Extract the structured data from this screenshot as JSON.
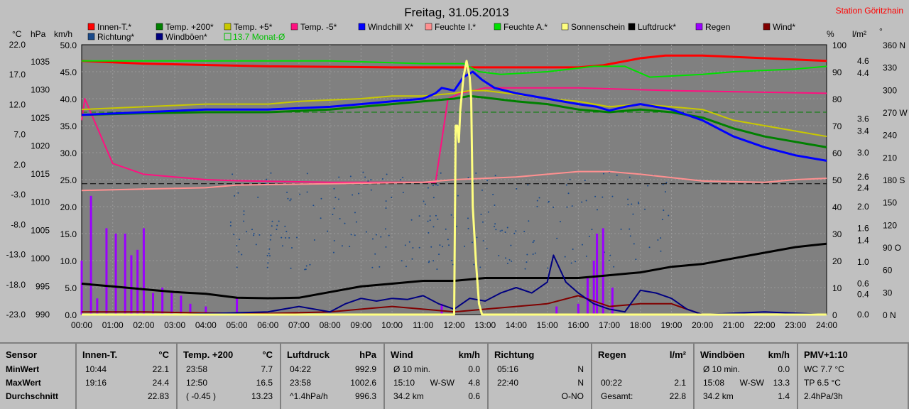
{
  "chart_data": {
    "type": "line",
    "title": "Freitag, 31.05.2013",
    "station": "Station Göritzhain",
    "x_ticks": [
      "00:00",
      "01:00",
      "02:00",
      "03:00",
      "04:00",
      "05:00",
      "06:00",
      "07:00",
      "08:00",
      "09:00",
      "10:00",
      "11:00",
      "12:00",
      "13:00",
      "14:00",
      "15:00",
      "16:00",
      "17:00",
      "18:00",
      "19:00",
      "20:00",
      "21:00",
      "22:00",
      "23:00",
      "24:00"
    ],
    "xlim": [
      0,
      24
    ],
    "axes": {
      "temp": {
        "unit": "°C",
        "ticks": [
          "22.0",
          "17.0",
          "12.0",
          "7.0",
          "2.0",
          "-3.0",
          "-8.0",
          "-13.0",
          "-18.0",
          "-23.0"
        ],
        "range": [
          -23,
          22
        ]
      },
      "pressure": {
        "unit": "hPa",
        "ticks": [
          "1035",
          "1030",
          "1025",
          "1020",
          "1015",
          "1010",
          "1005",
          "1000",
          "995",
          "990"
        ],
        "range": [
          990,
          1038
        ]
      },
      "wind": {
        "unit": "km/h",
        "ticks": [
          "50.0",
          "45.0",
          "40.0",
          "35.0",
          "30.0",
          "25.0",
          "20.0",
          "15.0",
          "10.0",
          "5.0",
          "0.0"
        ],
        "range": [
          0,
          50
        ]
      },
      "humidity": {
        "unit": "%",
        "ticks": [
          "100",
          "90",
          "80",
          "70",
          "60",
          "50",
          "40",
          "30",
          "20",
          "10",
          "0"
        ],
        "range": [
          0,
          100
        ]
      },
      "rain": {
        "unit": "l/m²",
        "ticks": [
          "4.6",
          "4.4",
          "3.6",
          "3.4",
          "3.0",
          "2.6",
          "2.4",
          "2.0",
          "1.6",
          "1.4",
          "1.0",
          "0.6",
          "0.4",
          "0.0"
        ]
      },
      "direction": {
        "unit": "°",
        "ticks": [
          "360 N",
          "330",
          "300",
          "270 W",
          "240",
          "210",
          "180 S",
          "150",
          "120",
          "90 O",
          "60",
          "30",
          "0 N"
        ],
        "range": [
          0,
          360
        ]
      }
    },
    "legend": [
      {
        "name": "Innen-T.*",
        "color": "#ff0000"
      },
      {
        "name": "Temp. +200*",
        "color": "#008000"
      },
      {
        "name": "Temp. +5*",
        "color": "#c8c800"
      },
      {
        "name": "Temp. -5*",
        "color": "#ff1080"
      },
      {
        "name": "Windchill X*",
        "color": "#0000ff"
      },
      {
        "name": "Feuchte I.*",
        "color": "#ff9090"
      },
      {
        "name": "Feuchte A.*",
        "color": "#00e000"
      },
      {
        "name": "Sonnenschein",
        "color": "#ffff80"
      },
      {
        "name": "Luftdruck*",
        "color": "#000000"
      },
      {
        "name": "Regen",
        "color": "#9b00ff"
      },
      {
        "name": "Wind*",
        "color": "#800000"
      },
      {
        "name": "Richtung*",
        "color": "#1a4a8a"
      },
      {
        "name": "Windböen*",
        "color": "#000080"
      },
      {
        "name": "13.7 Monat-Ø",
        "color": "#00c000"
      }
    ],
    "series": [
      {
        "name": "Innen-T.*",
        "axis": "wind",
        "x": [
          0,
          2,
          6,
          10,
          12,
          14,
          16,
          16.8,
          18,
          18.8,
          20,
          22,
          24
        ],
        "values": [
          47,
          46.5,
          46,
          45.8,
          45.8,
          45.8,
          45.8,
          46.2,
          47.5,
          48,
          48,
          47.5,
          47
        ]
      },
      {
        "name": "Feuchte A.*",
        "axis": "humidity",
        "x": [
          0,
          4,
          8,
          11,
          12.3,
          12.8,
          13.5,
          15,
          16.5,
          17.5,
          18.3,
          20,
          21,
          23,
          24
        ],
        "values": [
          94,
          94,
          94,
          93,
          93,
          90,
          89,
          90,
          92,
          92,
          88,
          89,
          90,
          91,
          92
        ]
      },
      {
        "name": "Temp. -5*",
        "axis": "wind",
        "x": [
          0,
          0.1,
          1,
          2,
          3,
          4,
          5,
          8,
          11,
          11.4,
          11.8,
          12.2,
          13,
          16,
          19,
          24
        ],
        "values": [
          36,
          40,
          28,
          26,
          25.5,
          25,
          24.8,
          24.5,
          24.5,
          24.5,
          40,
          41,
          42,
          42,
          41.5,
          41
        ]
      },
      {
        "name": "Temp. +5*",
        "axis": "wind",
        "x": [
          0,
          2,
          4,
          6,
          7,
          9,
          10,
          11,
          12,
          12.5,
          13,
          14,
          15,
          16,
          17,
          18,
          19,
          20,
          21,
          22,
          23,
          24
        ],
        "values": [
          38,
          38.5,
          39,
          39,
          39.5,
          40,
          40.5,
          40.5,
          41,
          41.5,
          41.5,
          40.8,
          40,
          39.5,
          38.5,
          39,
          38.5,
          38,
          36,
          35,
          34,
          33
        ]
      },
      {
        "name": "Temp. +200*",
        "axis": "wind",
        "x": [
          0,
          2,
          4,
          6,
          8,
          9,
          10,
          11,
          12,
          12.5,
          13,
          14,
          15,
          16,
          17,
          18,
          19,
          20,
          21,
          22,
          23,
          24
        ],
        "values": [
          37,
          37.3,
          37.5,
          37.5,
          38,
          38.5,
          39,
          39.5,
          40,
          40.5,
          40.2,
          39.5,
          39,
          38,
          37.5,
          38,
          37.5,
          36.5,
          34.5,
          33,
          32,
          31
        ]
      },
      {
        "name": "Windchill X*",
        "axis": "wind",
        "x": [
          0,
          2,
          4,
          6,
          8,
          9,
          10,
          11,
          11.4,
          11.6,
          12,
          12.3,
          12.6,
          12.9,
          13.3,
          14,
          15,
          16,
          16.6,
          17,
          17.5,
          18,
          18.5,
          19,
          20,
          21,
          22,
          23,
          24
        ],
        "values": [
          37,
          37.5,
          38,
          38,
          38.5,
          39,
          39.5,
          40,
          41,
          42,
          41.5,
          44,
          45,
          43.5,
          42,
          41,
          40,
          39,
          38.5,
          37.8,
          38.5,
          39,
          38.5,
          38,
          36,
          33,
          31,
          29.5,
          28.5
        ]
      },
      {
        "name": "Feuchte I.*",
        "axis": "humidity",
        "x": [
          0,
          2,
          4,
          5,
          8,
          11,
          12,
          13,
          14,
          15,
          16,
          17,
          18,
          20,
          22,
          23,
          24
        ],
        "values": [
          46,
          46.5,
          47,
          48,
          48.5,
          49,
          50,
          50.5,
          51,
          52,
          53,
          53,
          52,
          49.5,
          49,
          50,
          50.5
        ]
      },
      {
        "name": "Luftdruck*",
        "axis": "pressure",
        "x": [
          0,
          1,
          2,
          3,
          4,
          5,
          6,
          7,
          8,
          9,
          10,
          11,
          12,
          13,
          14,
          15,
          16,
          17,
          18,
          19,
          20,
          21,
          22,
          23,
          24
        ],
        "values": [
          995.5,
          995,
          994.5,
          994,
          993.7,
          993,
          992.9,
          993,
          994,
          995,
          995.5,
          996,
          996,
          996.5,
          996.5,
          996.5,
          996.5,
          997,
          997.5,
          998.5,
          999,
          1000,
          1001,
          1002,
          1002.6
        ]
      },
      {
        "name": "Wind*",
        "axis": "wind",
        "x": [
          0,
          2,
          4,
          6,
          8,
          9,
          10,
          11,
          12,
          13,
          14,
          15,
          16,
          17,
          18,
          19,
          20,
          24
        ],
        "values": [
          0.5,
          0.5,
          0.3,
          0.2,
          0.5,
          1,
          1.5,
          1,
          0.5,
          1,
          1.5,
          2,
          3.5,
          1.5,
          2,
          2,
          0,
          0
        ]
      },
      {
        "name": "Windböen*",
        "axis": "wind",
        "x": [
          0,
          3,
          6,
          7,
          8,
          8.5,
          9,
          9.5,
          10,
          10.5,
          11,
          11.5,
          12,
          12.5,
          13,
          13.5,
          14,
          14.5,
          15,
          15.2,
          15.6,
          16,
          16.5,
          17,
          17.5,
          18,
          18.5,
          19,
          19.5,
          20,
          22,
          24
        ],
        "values": [
          0,
          0,
          0.5,
          1.5,
          0.5,
          2,
          3,
          2.5,
          3,
          2.8,
          3.5,
          2,
          1,
          3,
          2.5,
          4,
          5,
          4,
          6,
          11,
          6,
          4,
          2,
          1,
          0.5,
          4.5,
          4,
          3,
          1,
          0,
          0.5,
          0
        ]
      },
      {
        "name": "Sonnenschein",
        "axis": "wind",
        "x": [
          0,
          11.9,
          12,
          12.05,
          12.1,
          12.15,
          12.2,
          12.3,
          12.4,
          12.5,
          12.55,
          12.6,
          12.7,
          12.8,
          12.9,
          13,
          24
        ],
        "values": [
          0,
          0,
          0,
          35,
          35,
          32,
          38,
          44,
          47,
          44,
          40,
          20,
          10,
          2,
          0,
          0,
          0
        ]
      }
    ],
    "rain_bars": {
      "axis": "wind",
      "x": [
        0,
        0.3,
        0.5,
        0.8,
        1.1,
        1.4,
        1.6,
        1.8,
        2,
        2.3,
        2.6,
        2.9,
        3.2,
        3.5,
        4,
        5,
        11.6,
        15.3,
        16,
        16.3,
        16.5,
        16.6,
        16.8,
        17.1
      ],
      "values": [
        10,
        22,
        3,
        16,
        15,
        15,
        11,
        12,
        16,
        4,
        5,
        4,
        3.5,
        2,
        1.5,
        3,
        2,
        1.5,
        2,
        7,
        10,
        15,
        16,
        5
      ]
    },
    "reference_lines": [
      {
        "axis": "humidity",
        "value": 75,
        "color": "#008000",
        "label": "13.7 Monat-Ø"
      },
      {
        "axis": "humidity",
        "value": 48.5,
        "color": "#000000"
      }
    ]
  },
  "panel": {
    "cols": [
      {
        "header": "Sensor",
        "unit": "",
        "rows": [
          [
            "MinWert",
            "",
            ""
          ],
          [
            "MaxWert",
            "",
            ""
          ],
          [
            "Durchschnitt",
            "",
            ""
          ]
        ]
      },
      {
        "header": "Innen-T.",
        "unit": "°C",
        "rows": [
          [
            "10:44",
            "",
            "22.1"
          ],
          [
            "19:16",
            "",
            "24.4"
          ],
          [
            "",
            "",
            "22.83"
          ]
        ]
      },
      {
        "header": "Temp. +200",
        "unit": "°C",
        "rows": [
          [
            "23:58",
            "",
            "7.7"
          ],
          [
            "12:50",
            "",
            "16.5"
          ],
          [
            "( -0.45 )",
            "",
            "13.23"
          ]
        ]
      },
      {
        "header": "Luftdruck",
        "unit": "hPa",
        "rows": [
          [
            "04:22",
            "",
            "992.9"
          ],
          [
            "23:58",
            "",
            "1002.6"
          ],
          [
            "^1.4hPa/h",
            "",
            "996.3"
          ]
        ]
      },
      {
        "header": "Wind",
        "unit": "km/h",
        "rows": [
          [
            "Ø 10 min.",
            "",
            "0.0"
          ],
          [
            "15:10",
            "W-SW",
            "4.8"
          ],
          [
            "34.2 km",
            "",
            "0.6"
          ]
        ]
      },
      {
        "header": "Richtung",
        "unit": "",
        "rows": [
          [
            "05:16",
            "",
            "N"
          ],
          [
            "22:40",
            "",
            "N"
          ],
          [
            "",
            "",
            "O-NO"
          ]
        ]
      },
      {
        "header": "Regen",
        "unit": "l/m²",
        "rows": [
          [
            "",
            "",
            ""
          ],
          [
            "00:22",
            "",
            "2.1"
          ],
          [
            "Gesamt:",
            "",
            "22.8"
          ]
        ]
      },
      {
        "header": "Windböen",
        "unit": "km/h",
        "rows": [
          [
            "Ø 10 min.",
            "",
            "0.0"
          ],
          [
            "15:08",
            "W-SW",
            "13.3"
          ],
          [
            "34.2 km",
            "",
            "1.4"
          ]
        ]
      },
      {
        "header": "PMV+1:10",
        "unit": "",
        "rows": [
          [
            "WC 7.7 °C",
            "",
            ""
          ],
          [
            "TP 6.5 °C",
            "",
            ""
          ],
          [
            "2.4hPa/3h",
            "",
            ""
          ]
        ]
      }
    ]
  }
}
